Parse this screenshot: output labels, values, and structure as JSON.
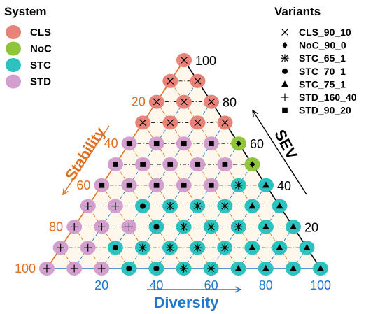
{
  "chart_data": {
    "type": "scatter",
    "subtype": "ternary",
    "axes": {
      "stability": {
        "label": "Stability",
        "ticks": [
          "20",
          "40",
          "60",
          "80",
          "100"
        ],
        "color": "#e07020"
      },
      "diversity": {
        "label": "Diversity",
        "ticks": [
          "20",
          "40",
          "60",
          "80",
          "100"
        ],
        "color": "#1f78c8"
      },
      "sev": {
        "label": "SEV",
        "ticks": [
          "20",
          "40",
          "60",
          "80",
          "100"
        ],
        "color": "#000000"
      }
    },
    "legend_system": {
      "title": "System",
      "position": "top-left",
      "items": [
        {
          "name": "CLS",
          "color": "#e8837a"
        },
        {
          "name": "NoC",
          "color": "#8fc43b"
        },
        {
          "name": "STC",
          "color": "#2cc2c0"
        },
        {
          "name": "STD",
          "color": "#d29fce"
        }
      ]
    },
    "legend_variants": {
      "title": "Variants",
      "position": "top-right",
      "items": [
        {
          "name": "CLS_90_10",
          "shape": "x"
        },
        {
          "name": "NoC_90_0",
          "shape": "diamond"
        },
        {
          "name": "STC_65_1",
          "shape": "asterisk"
        },
        {
          "name": "STC_70_1",
          "shape": "circle"
        },
        {
          "name": "STC_75_1",
          "shape": "triangle"
        },
        {
          "name": "STD_160_40",
          "shape": "plus"
        },
        {
          "name": "STD_90_20",
          "shape": "square"
        }
      ]
    },
    "points_note": "Each point: sev, diversity (percent); stability = 100 - sev - diversity",
    "points": [
      {
        "sev": 100,
        "diversity": 0,
        "system": "CLS",
        "variant": "CLS_90_10"
      },
      {
        "sev": 90,
        "diversity": 0,
        "system": "CLS",
        "variant": "CLS_90_10"
      },
      {
        "sev": 90,
        "diversity": 10,
        "system": "CLS",
        "variant": "CLS_90_10"
      },
      {
        "sev": 80,
        "diversity": 0,
        "system": "CLS",
        "variant": "CLS_90_10"
      },
      {
        "sev": 80,
        "diversity": 10,
        "system": "CLS",
        "variant": "CLS_90_10"
      },
      {
        "sev": 80,
        "diversity": 20,
        "system": "CLS",
        "variant": "CLS_90_10"
      },
      {
        "sev": 70,
        "diversity": 0,
        "system": "CLS",
        "variant": "CLS_90_10"
      },
      {
        "sev": 70,
        "diversity": 10,
        "system": "CLS",
        "variant": "CLS_90_10"
      },
      {
        "sev": 70,
        "diversity": 20,
        "system": "CLS",
        "variant": "CLS_90_10"
      },
      {
        "sev": 70,
        "diversity": 30,
        "system": "CLS",
        "variant": "CLS_90_10"
      },
      {
        "sev": 60,
        "diversity": 0,
        "system": "STD",
        "variant": "STD_90_20"
      },
      {
        "sev": 60,
        "diversity": 10,
        "system": "STD",
        "variant": "STD_90_20"
      },
      {
        "sev": 60,
        "diversity": 20,
        "system": "STD",
        "variant": "STD_90_20"
      },
      {
        "sev": 60,
        "diversity": 30,
        "system": "STD",
        "variant": "STD_90_20"
      },
      {
        "sev": 60,
        "diversity": 40,
        "system": "NoC",
        "variant": "NoC_90_0"
      },
      {
        "sev": 50,
        "diversity": 0,
        "system": "STD",
        "variant": "STD_90_20"
      },
      {
        "sev": 50,
        "diversity": 10,
        "system": "STD",
        "variant": "STD_90_20"
      },
      {
        "sev": 50,
        "diversity": 20,
        "system": "STD",
        "variant": "STD_90_20"
      },
      {
        "sev": 50,
        "diversity": 30,
        "system": "STD",
        "variant": "STD_90_20"
      },
      {
        "sev": 50,
        "diversity": 40,
        "system": "STD",
        "variant": "STD_90_20"
      },
      {
        "sev": 50,
        "diversity": 50,
        "system": "NoC",
        "variant": "NoC_90_0"
      },
      {
        "sev": 40,
        "diversity": 0,
        "system": "STD",
        "variant": "STD_90_20"
      },
      {
        "sev": 40,
        "diversity": 10,
        "system": "STD",
        "variant": "STD_90_20"
      },
      {
        "sev": 40,
        "diversity": 20,
        "system": "STD",
        "variant": "STD_90_20"
      },
      {
        "sev": 40,
        "diversity": 30,
        "system": "STD",
        "variant": "STD_90_20"
      },
      {
        "sev": 40,
        "diversity": 40,
        "system": "STD",
        "variant": "STD_90_20"
      },
      {
        "sev": 40,
        "diversity": 50,
        "system": "STC",
        "variant": "STC_65_1"
      },
      {
        "sev": 40,
        "diversity": 60,
        "system": "STC",
        "variant": "STC_75_1"
      },
      {
        "sev": 30,
        "diversity": 0,
        "system": "STD",
        "variant": "STD_160_40"
      },
      {
        "sev": 30,
        "diversity": 10,
        "system": "STD",
        "variant": "STD_160_40"
      },
      {
        "sev": 30,
        "diversity": 20,
        "system": "STC",
        "variant": "STC_70_1"
      },
      {
        "sev": 30,
        "diversity": 30,
        "system": "STC",
        "variant": "STC_65_1"
      },
      {
        "sev": 30,
        "diversity": 40,
        "system": "STC",
        "variant": "STC_65_1"
      },
      {
        "sev": 30,
        "diversity": 50,
        "system": "STC",
        "variant": "STC_65_1"
      },
      {
        "sev": 30,
        "diversity": 60,
        "system": "STC",
        "variant": "STC_75_1"
      },
      {
        "sev": 30,
        "diversity": 70,
        "system": "STC",
        "variant": "STC_75_1"
      },
      {
        "sev": 20,
        "diversity": 0,
        "system": "STD",
        "variant": "STD_160_40"
      },
      {
        "sev": 20,
        "diversity": 10,
        "system": "STD",
        "variant": "STD_160_40"
      },
      {
        "sev": 20,
        "diversity": 20,
        "system": "STD",
        "variant": "STD_160_40"
      },
      {
        "sev": 20,
        "diversity": 30,
        "system": "STC",
        "variant": "STC_70_1"
      },
      {
        "sev": 20,
        "diversity": 40,
        "system": "STC",
        "variant": "STC_65_1"
      },
      {
        "sev": 20,
        "diversity": 50,
        "system": "STC",
        "variant": "STC_65_1"
      },
      {
        "sev": 20,
        "diversity": 60,
        "system": "STC",
        "variant": "STC_65_1"
      },
      {
        "sev": 20,
        "diversity": 70,
        "system": "STC",
        "variant": "STC_75_1"
      },
      {
        "sev": 20,
        "diversity": 80,
        "system": "STC",
        "variant": "STC_75_1"
      },
      {
        "sev": 10,
        "diversity": 0,
        "system": "STD",
        "variant": "STD_160_40"
      },
      {
        "sev": 10,
        "diversity": 10,
        "system": "STD",
        "variant": "STD_160_40"
      },
      {
        "sev": 10,
        "diversity": 20,
        "system": "STC",
        "variant": "STC_70_1"
      },
      {
        "sev": 10,
        "diversity": 30,
        "system": "STC",
        "variant": "STC_65_1"
      },
      {
        "sev": 10,
        "diversity": 40,
        "system": "STC",
        "variant": "STC_65_1"
      },
      {
        "sev": 10,
        "diversity": 50,
        "system": "STC",
        "variant": "STC_65_1"
      },
      {
        "sev": 10,
        "diversity": 60,
        "system": "STC",
        "variant": "STC_65_1"
      },
      {
        "sev": 10,
        "diversity": 70,
        "system": "STC",
        "variant": "STC_75_1"
      },
      {
        "sev": 10,
        "diversity": 80,
        "system": "STC",
        "variant": "STC_75_1"
      },
      {
        "sev": 10,
        "diversity": 90,
        "system": "STC",
        "variant": "STC_75_1"
      },
      {
        "sev": 0,
        "diversity": 0,
        "system": "STD",
        "variant": "STD_160_40"
      },
      {
        "sev": 0,
        "diversity": 10,
        "system": "STD",
        "variant": "STD_160_40"
      },
      {
        "sev": 0,
        "diversity": 20,
        "system": "STD",
        "variant": "STD_160_40"
      },
      {
        "sev": 0,
        "diversity": 30,
        "system": "STC",
        "variant": "STC_70_1"
      },
      {
        "sev": 0,
        "diversity": 40,
        "system": "STC",
        "variant": "STC_70_1"
      },
      {
        "sev": 0,
        "diversity": 50,
        "system": "STC",
        "variant": "STC_65_1"
      },
      {
        "sev": 0,
        "diversity": 60,
        "system": "STC",
        "variant": "STC_65_1"
      },
      {
        "sev": 0,
        "diversity": 70,
        "system": "STC",
        "variant": "STC_75_1"
      },
      {
        "sev": 0,
        "diversity": 80,
        "system": "STC",
        "variant": "STC_75_1"
      },
      {
        "sev": 0,
        "diversity": 90,
        "system": "STC",
        "variant": "STC_75_1"
      },
      {
        "sev": 0,
        "diversity": 100,
        "system": "STC",
        "variant": "STC_75_1"
      }
    ]
  }
}
